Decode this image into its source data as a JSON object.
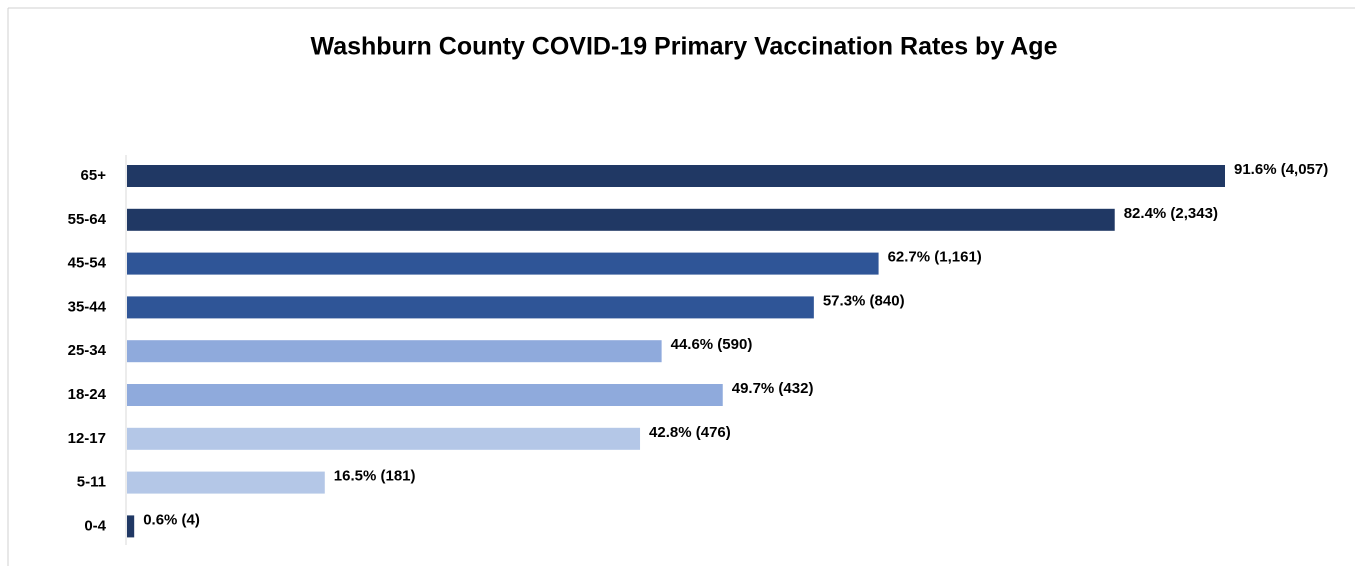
{
  "chart_data": {
    "type": "bar",
    "orientation": "horizontal",
    "title": "Washburn County COVID-19 Primary Vaccination Rates by Age",
    "categories": [
      "65+",
      "55-64",
      "45-54",
      "35-44",
      "25-34",
      "18-24",
      "12-17",
      "5-11",
      "0-4"
    ],
    "values": [
      91.6,
      82.4,
      62.7,
      57.3,
      44.6,
      49.7,
      42.8,
      16.5,
      0.6
    ],
    "value_labels": [
      "91.6% (4,057)",
      "82.4% (2,343)",
      "62.7% (1,161)",
      "57.3% (840)",
      "44.6% (590)",
      "49.7% (432)",
      "42.8% (476)",
      "16.5% (181)",
      "0.6% (4)"
    ],
    "colors": [
      "#203864",
      "#203864",
      "#2f5597",
      "#2f5597",
      "#8faadc",
      "#8faadc",
      "#b4c7e7",
      "#b4c7e7",
      "#203864"
    ]
  }
}
